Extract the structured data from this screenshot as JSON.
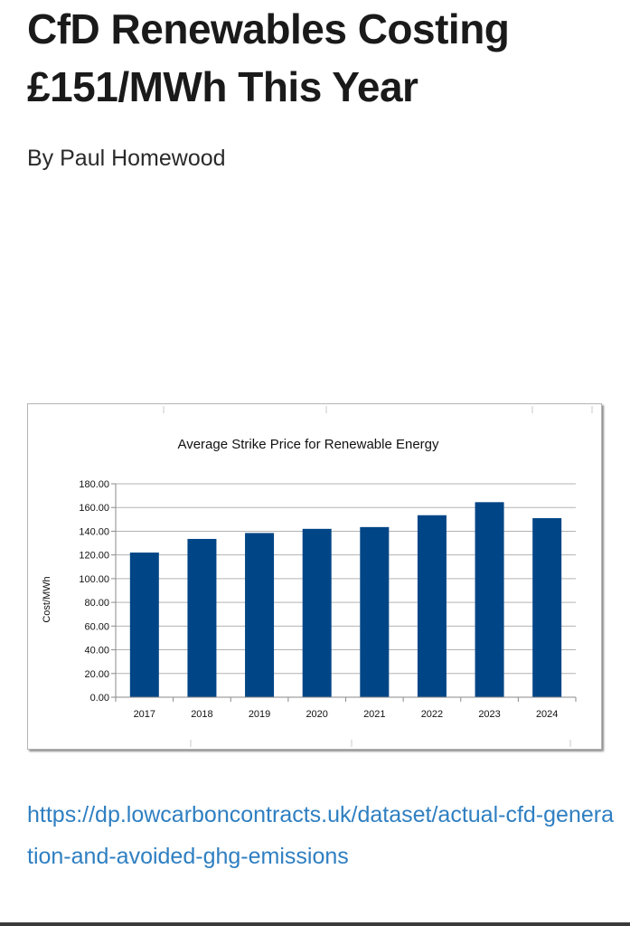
{
  "article": {
    "title": "CfD Renewables Costing £151/MWh This Year",
    "byline": "By Paul Homewood",
    "link_text": "https://dp.lowcarboncontracts.uk/dataset/actual-cfd-generation-and-avoided-ghg-emissions"
  },
  "chart_data": {
    "type": "bar",
    "title": "Average Strike Price for Renewable Energy",
    "xlabel": "",
    "ylabel": "Cost/MWh",
    "categories": [
      "2017",
      "2018",
      "2019",
      "2020",
      "2021",
      "2022",
      "2023",
      "2024"
    ],
    "values": [
      122,
      133.5,
      138.5,
      142,
      143.5,
      153.5,
      164.5,
      151
    ],
    "ylim": [
      0,
      180
    ],
    "yticks": [
      "0.00",
      "20.00",
      "40.00",
      "60.00",
      "80.00",
      "100.00",
      "120.00",
      "140.00",
      "160.00",
      "180.00"
    ],
    "grid": true,
    "legend": "none",
    "bar_color": "#004586"
  }
}
